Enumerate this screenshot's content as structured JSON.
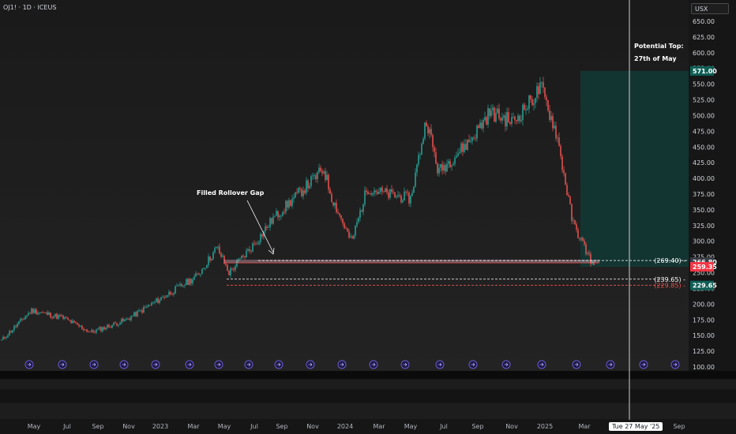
{
  "header": {
    "symbol": "OJ1! · 1D · ICEUS"
  },
  "currency": "USX",
  "y_ticks": [
    100,
    125,
    150,
    175,
    200,
    225,
    250,
    275,
    300,
    325,
    350,
    375,
    400,
    425,
    450,
    475,
    500,
    525,
    550,
    575,
    600,
    625,
    650
  ],
  "y_tick_labels": [
    "100.00",
    "125.00",
    "150.00",
    "175.00",
    "200.00",
    "225.00",
    "250.00",
    "275.00",
    "300.00",
    "325.00",
    "350.00",
    "375.00",
    "400.00",
    "425.00",
    "450.00",
    "475.00",
    "500.00",
    "525.00",
    "550.00",
    "575.00",
    "600.00",
    "625.00",
    "650.00"
  ],
  "x_labels": [
    "May",
    "Jul",
    "Sep",
    "Nov",
    "2023",
    "Mar",
    "May",
    "Jul",
    "Sep",
    "Nov",
    "2024",
    "Mar",
    "May",
    "Jul",
    "Sep",
    "Nov",
    "2025",
    "Mar",
    "Sep"
  ],
  "crosshair_date": "Tue 27 May '25",
  "annotations": {
    "gap_label": "Filled Rollover Gap",
    "potential_top_line1": "Potential Top:",
    "potential_top_line2": "27th of May"
  },
  "levels": {
    "gap_top": {
      "value": 269.4,
      "label": "(269.40)"
    },
    "support": {
      "value": 239.65,
      "label": "(239.65)"
    },
    "lower": {
      "value": 229.85,
      "label": "(229.85)"
    }
  },
  "price_tags": [
    {
      "value": 571.0,
      "label": "571.00",
      "color": "#0f5e56"
    },
    {
      "value": 266.8,
      "label": "266.80",
      "color": "#3a3d45"
    },
    {
      "value": 259.35,
      "label": "259.35",
      "color": "#f23645"
    },
    {
      "value": 229.65,
      "label": "229.65",
      "color": "#0f5e56"
    }
  ],
  "colors": {
    "up": "#26a69a",
    "down": "#ef5350",
    "bg": "#161616",
    "zone": "#123a36",
    "vline": "#d0d0d0"
  },
  "chart_data": {
    "type": "candlestick",
    "symbol": "OJ1!",
    "timeframe": "1D",
    "ylim": [
      100,
      660
    ],
    "key_points": [
      {
        "date": "2022-03",
        "price": 140
      },
      {
        "date": "2022-05",
        "price": 190
      },
      {
        "date": "2022-07",
        "price": 178
      },
      {
        "date": "2022-09",
        "price": 155
      },
      {
        "date": "2022-11",
        "price": 175
      },
      {
        "date": "2023-01",
        "price": 210
      },
      {
        "date": "2023-03",
        "price": 245
      },
      {
        "date": "2023-05",
        "price": 290
      },
      {
        "date": "2023-06",
        "price": 250
      },
      {
        "date": "2023-08",
        "price": 300
      },
      {
        "date": "2023-09",
        "price": 335
      },
      {
        "date": "2023-11",
        "price": 415
      },
      {
        "date": "2023-12",
        "price": 370
      },
      {
        "date": "2024-02",
        "price": 298
      },
      {
        "date": "2024-03",
        "price": 385
      },
      {
        "date": "2024-04",
        "price": 375
      },
      {
        "date": "2024-05",
        "price": 368
      },
      {
        "date": "2024-06",
        "price": 495
      },
      {
        "date": "2024-07",
        "price": 410
      },
      {
        "date": "2024-08",
        "price": 460
      },
      {
        "date": "2024-09",
        "price": 505
      },
      {
        "date": "2024-10",
        "price": 490
      },
      {
        "date": "2024-11",
        "price": 520
      },
      {
        "date": "2024-12",
        "price": 545
      },
      {
        "date": "2025-01",
        "price": 470
      },
      {
        "date": "2025-02",
        "price": 330
      },
      {
        "date": "2025-03",
        "price": 259.35
      }
    ],
    "horizontal_levels": [
      269.4,
      266.8,
      239.65,
      229.85
    ],
    "target_zone": {
      "from": 259.35,
      "to": 571.0
    }
  }
}
